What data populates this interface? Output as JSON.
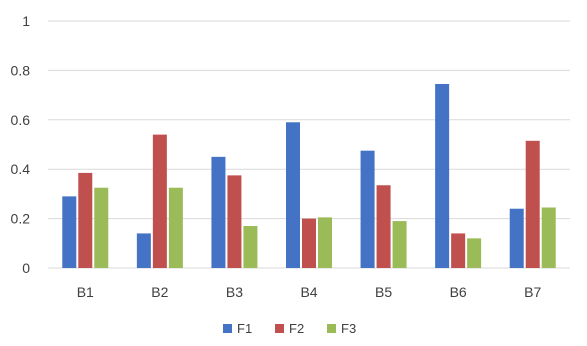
{
  "chart_data": {
    "type": "bar",
    "title": "",
    "xlabel": "",
    "ylabel": "",
    "categories": [
      "B1",
      "B2",
      "B3",
      "B4",
      "B5",
      "B6",
      "B7"
    ],
    "series": [
      {
        "name": "F1",
        "color": "#4472c4",
        "values": [
          0.29,
          0.14,
          0.45,
          0.59,
          0.475,
          0.745,
          0.24
        ]
      },
      {
        "name": "F2",
        "color": "#c0504d",
        "values": [
          0.385,
          0.54,
          0.375,
          0.2,
          0.335,
          0.14,
          0.515
        ]
      },
      {
        "name": "F3",
        "color": "#9bbb59",
        "values": [
          0.325,
          0.325,
          0.17,
          0.205,
          0.19,
          0.12,
          0.245
        ]
      }
    ],
    "ylim": [
      0,
      1
    ],
    "yticks": [
      "0",
      "0.2",
      "0.4",
      "0.6",
      "0.8",
      "1"
    ],
    "ytick_values": [
      0,
      0.2,
      0.4,
      0.6,
      0.8,
      1
    ],
    "grid": true,
    "legend": "bottom-center"
  }
}
